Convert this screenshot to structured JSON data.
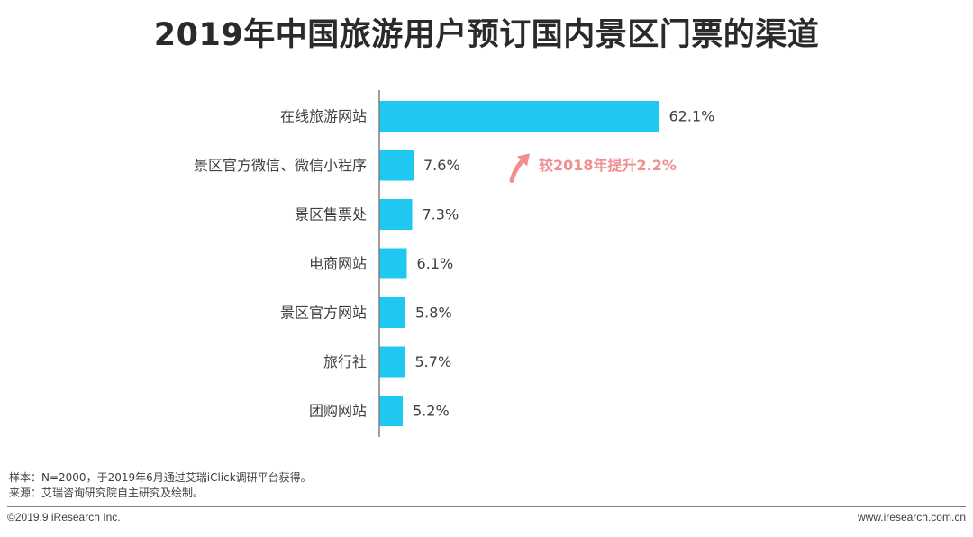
{
  "title": "2019年中国旅游用户预订国内景区门票的渠道",
  "chart_data": {
    "type": "bar",
    "orientation": "horizontal",
    "categories": [
      "在线旅游网站",
      "景区官方微信、微信小程序",
      "景区售票处",
      "电商网站",
      "景区官方网站",
      "旅行社",
      "团购网站"
    ],
    "values": [
      62.1,
      7.6,
      7.3,
      6.1,
      5.8,
      5.7,
      5.2
    ],
    "value_labels": [
      "62.1%",
      "7.6%",
      "7.3%",
      "6.1%",
      "5.8%",
      "5.7%",
      "5.2%"
    ],
    "bar_color": "#1fc8f0",
    "annotation": {
      "text": "较2018年提升2.2%",
      "color": "#f08f8f",
      "target_category": "景区官方微信、微信小程序"
    },
    "xlim": [
      0,
      65
    ],
    "grid": false
  },
  "notes": {
    "sample": "样本：N=2000，于2019年6月通过艾瑞iClick调研平台获得。",
    "source": "来源：艾瑞咨询研究院自主研究及绘制。"
  },
  "footer": {
    "copyright": "©2019.9 iResearch Inc.",
    "website": "www.iresearch.com.cn"
  }
}
